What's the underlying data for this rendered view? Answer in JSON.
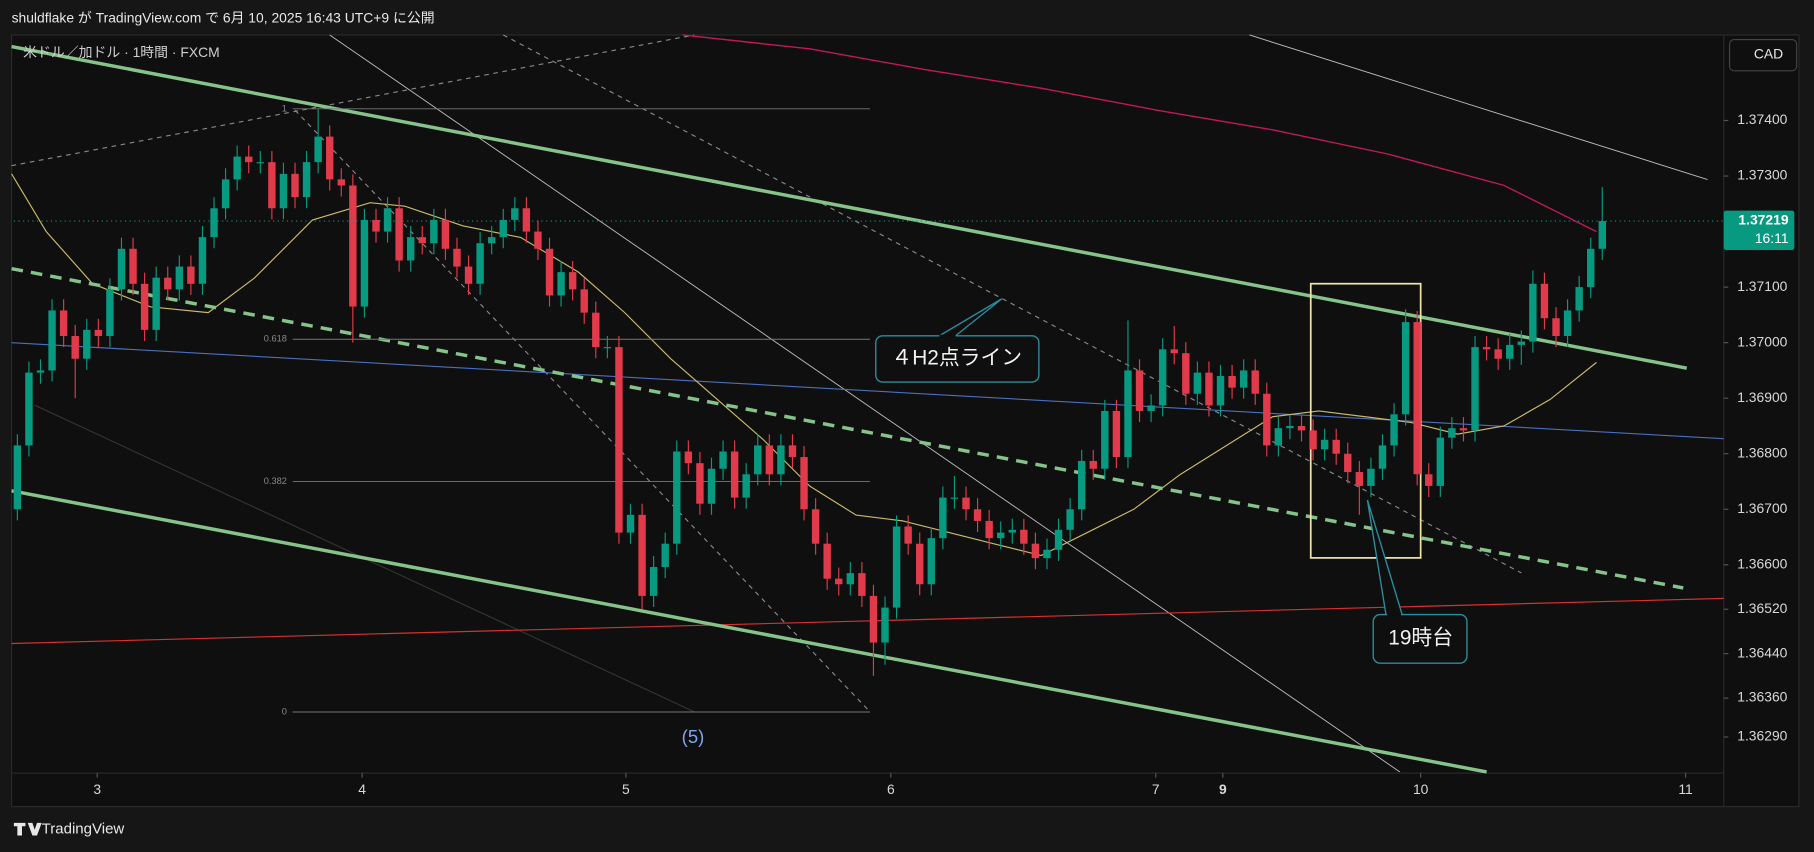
{
  "header": "shuldflake が TradingView.com で 6月 10, 2025 16:43 UTC+9 に公開",
  "branding": "TradingView",
  "chart_data": {
    "type": "candlestick",
    "title": "米ドル／加ドル · 1時間 · FXCM",
    "currency": "CAD",
    "up_color": "#089981",
    "down_color": "#e13a4b",
    "open": [
      1.367,
      1.36815,
      1.36946,
      1.3695,
      1.37058,
      1.37012,
      1.36971,
      1.37023,
      1.37012,
      1.37096,
      1.37169,
      1.37106,
      1.37023,
      1.37117,
      1.37096,
      1.37137,
      1.37106,
      1.3719,
      1.37242,
      1.37294,
      1.37335,
      1.37325,
      1.37325,
      1.37242,
      1.37304,
      1.37262,
      1.37325,
      1.37371,
      1.37294,
      1.37283,
      1.37065,
      1.37221,
      1.372,
      1.37242,
      1.37148,
      1.3719,
      1.37179,
      1.37221,
      1.37169,
      1.37137,
      1.37106,
      1.37179,
      1.3719,
      1.37221,
      1.37242,
      1.372,
      1.37169,
      1.37085,
      1.37127,
      1.37096,
      1.37054,
      1.36992,
      1.36992,
      1.36658,
      1.3669,
      1.36544,
      1.36596,
      1.36638,
      1.36804,
      1.36783,
      1.3671,
      1.36773,
      1.36804,
      1.36721,
      1.36763,
      1.36815,
      1.36763,
      1.36815,
      1.36794,
      1.367,
      1.36638,
      1.36575,
      1.36565,
      1.36585,
      1.36544,
      1.3646,
      1.36523,
      1.36669,
      1.36638,
      1.36565,
      1.36648,
      1.36721,
      1.36721,
      1.367,
      1.36679,
      1.36648,
      1.36658,
      1.36663,
      1.36638,
      1.36612,
      1.36627,
      1.36663,
      1.367,
      1.36787,
      1.36773,
      1.36877,
      1.36794,
      1.3695,
      1.36877,
      1.36887,
      1.36988,
      1.36981,
      1.36908,
      1.36946,
      1.36887,
      1.3694,
      1.36919,
      1.3695,
      1.36908,
      1.36815,
      1.36846,
      1.3685,
      1.36842,
      1.36808,
      1.36825,
      1.368,
      1.36767,
      1.36742,
      1.36773,
      1.36815,
      1.36871,
      1.37037,
      1.36763,
      1.36742,
      1.36829,
      1.36846,
      1.36842,
      1.36992,
      1.36988,
      1.36971,
      1.36996,
      1.37002,
      1.37106,
      1.37044,
      1.37012,
      1.37058,
      1.371,
      1.37169
    ],
    "high": [
      1.36835,
      1.36966,
      1.3697,
      1.37078,
      1.37078,
      1.37032,
      1.37043,
      1.37043,
      1.37116,
      1.37189,
      1.37189,
      1.37126,
      1.37137,
      1.37137,
      1.37157,
      1.37157,
      1.3721,
      1.37262,
      1.37314,
      1.37355,
      1.37355,
      1.37345,
      1.37345,
      1.37324,
      1.37324,
      1.37345,
      1.3742,
      1.37391,
      1.37314,
      1.37303,
      1.37241,
      1.37241,
      1.37262,
      1.37262,
      1.3721,
      1.3721,
      1.37241,
      1.37241,
      1.37189,
      1.37157,
      1.37199,
      1.3721,
      1.37241,
      1.37262,
      1.37262,
      1.3722,
      1.37189,
      1.37147,
      1.37147,
      1.37116,
      1.37074,
      1.37012,
      1.37012,
      1.3671,
      1.3671,
      1.36616,
      1.36658,
      1.36824,
      1.36824,
      1.36803,
      1.36793,
      1.36824,
      1.36824,
      1.36783,
      1.36835,
      1.36835,
      1.36835,
      1.36835,
      1.36814,
      1.3672,
      1.36658,
      1.36595,
      1.36605,
      1.36605,
      1.36564,
      1.36543,
      1.36689,
      1.36689,
      1.36658,
      1.36668,
      1.36741,
      1.3676,
      1.36741,
      1.3672,
      1.36699,
      1.36678,
      1.36683,
      1.36683,
      1.36658,
      1.36647,
      1.36683,
      1.3672,
      1.36807,
      1.36807,
      1.36897,
      1.36897,
      1.3704,
      1.3697,
      1.36907,
      1.37008,
      1.3703,
      1.37001,
      1.36966,
      1.36966,
      1.3696,
      1.3696,
      1.3697,
      1.3697,
      1.36928,
      1.36866,
      1.3687,
      1.3687,
      1.36862,
      1.36845,
      1.36845,
      1.3682,
      1.36787,
      1.36793,
      1.36835,
      1.36891,
      1.3706,
      1.37057,
      1.36783,
      1.36849,
      1.36866,
      1.36866,
      1.37012,
      1.37012,
      1.37008,
      1.37016,
      1.37022,
      1.3713,
      1.37126,
      1.37064,
      1.37078,
      1.3712,
      1.37189,
      1.3728
    ],
    "low": [
      1.3668,
      1.36795,
      1.36926,
      1.3693,
      1.36992,
      1.369,
      1.36951,
      1.36992,
      1.36992,
      1.37076,
      1.37086,
      1.37003,
      1.37003,
      1.37076,
      1.37076,
      1.37086,
      1.37086,
      1.3717,
      1.37222,
      1.37274,
      1.37305,
      1.37305,
      1.37222,
      1.37222,
      1.37242,
      1.37242,
      1.37305,
      1.37274,
      1.37263,
      1.37,
      1.37045,
      1.3718,
      1.3718,
      1.37128,
      1.37128,
      1.37159,
      1.37159,
      1.37149,
      1.37117,
      1.37086,
      1.37086,
      1.37159,
      1.3717,
      1.37201,
      1.3718,
      1.37149,
      1.37065,
      1.37065,
      1.37076,
      1.37034,
      1.36972,
      1.36972,
      1.36638,
      1.36638,
      1.3652,
      1.36524,
      1.36576,
      1.36618,
      1.36763,
      1.3669,
      1.3669,
      1.36753,
      1.36701,
      1.36701,
      1.36743,
      1.36743,
      1.36743,
      1.36774,
      1.3668,
      1.36618,
      1.36555,
      1.36545,
      1.36545,
      1.36524,
      1.364,
      1.3642,
      1.36503,
      1.36618,
      1.36545,
      1.36545,
      1.36628,
      1.36701,
      1.3668,
      1.36659,
      1.36628,
      1.36628,
      1.36638,
      1.36618,
      1.36592,
      1.36592,
      1.36607,
      1.36643,
      1.3668,
      1.36753,
      1.36753,
      1.36774,
      1.36774,
      1.36857,
      1.36857,
      1.36867,
      1.36961,
      1.36888,
      1.36888,
      1.36867,
      1.36867,
      1.36899,
      1.36899,
      1.36888,
      1.36795,
      1.36795,
      1.36826,
      1.36822,
      1.36788,
      1.36788,
      1.3678,
      1.36747,
      1.3669,
      1.36722,
      1.36753,
      1.36795,
      1.36851,
      1.36743,
      1.36722,
      1.36722,
      1.36809,
      1.36822,
      1.36822,
      1.36968,
      1.36951,
      1.36951,
      1.3696,
      1.36982,
      1.37024,
      1.36992,
      1.36992,
      1.37038,
      1.3708,
      1.37149
    ],
    "close": [
      1.36815,
      1.36946,
      1.3695,
      1.37058,
      1.37012,
      1.36971,
      1.37023,
      1.37012,
      1.37096,
      1.37169,
      1.37106,
      1.37023,
      1.37117,
      1.37096,
      1.37137,
      1.37106,
      1.3719,
      1.37242,
      1.37294,
      1.37335,
      1.37325,
      1.37325,
      1.37242,
      1.37304,
      1.37262,
      1.37325,
      1.37371,
      1.37294,
      1.37283,
      1.37065,
      1.37221,
      1.372,
      1.37242,
      1.37148,
      1.3719,
      1.37179,
      1.37221,
      1.37169,
      1.37137,
      1.37106,
      1.37179,
      1.3719,
      1.37221,
      1.37242,
      1.372,
      1.37169,
      1.37085,
      1.37127,
      1.37096,
      1.37054,
      1.36992,
      1.36992,
      1.36658,
      1.3669,
      1.36544,
      1.36596,
      1.36638,
      1.36804,
      1.36783,
      1.3671,
      1.36773,
      1.36804,
      1.36721,
      1.36763,
      1.36815,
      1.36763,
      1.36815,
      1.36794,
      1.367,
      1.36638,
      1.36575,
      1.36565,
      1.36585,
      1.36544,
      1.3646,
      1.36523,
      1.36669,
      1.36638,
      1.36565,
      1.36648,
      1.36721,
      1.36721,
      1.367,
      1.36679,
      1.36648,
      1.36658,
      1.36663,
      1.36638,
      1.36612,
      1.36627,
      1.36663,
      1.367,
      1.36787,
      1.36773,
      1.36877,
      1.36794,
      1.3695,
      1.36877,
      1.36887,
      1.36988,
      1.36981,
      1.36908,
      1.36946,
      1.36887,
      1.3694,
      1.36919,
      1.3695,
      1.36908,
      1.36815,
      1.36846,
      1.3685,
      1.36842,
      1.36808,
      1.36825,
      1.368,
      1.36767,
      1.36742,
      1.36773,
      1.36815,
      1.36871,
      1.37037,
      1.36763,
      1.36742,
      1.36829,
      1.36846,
      1.36842,
      1.36992,
      1.36988,
      1.36971,
      1.36996,
      1.37002,
      1.37106,
      1.37044,
      1.37012,
      1.37058,
      1.371,
      1.37169,
      1.37219
    ],
    "xlim": [
      -0.3,
      147.5
    ],
    "xticks": [
      {
        "value": 6.9,
        "label": "3"
      },
      {
        "value": 29.8,
        "label": "4"
      },
      {
        "value": 52.6,
        "label": "5"
      },
      {
        "value": 75.5,
        "label": "6"
      },
      {
        "value": 98.4,
        "label": "7"
      },
      {
        "value": 104.2,
        "label": "9"
      },
      {
        "value": 121.3,
        "label": "10"
      },
      {
        "value": 144.2,
        "label": "11"
      }
    ],
    "ylim": [
      1.36225,
      1.37554
    ],
    "yticks": [
      {
        "value": 1.374,
        "label": "1.37400"
      },
      {
        "value": 1.373,
        "label": "1.37300"
      },
      {
        "value": 1.371,
        "label": "1.37100"
      },
      {
        "value": 1.37,
        "label": "1.37000"
      },
      {
        "value": 1.369,
        "label": "1.36900"
      },
      {
        "value": 1.368,
        "label": "1.36800"
      },
      {
        "value": 1.367,
        "label": "1.36700"
      },
      {
        "value": 1.366,
        "label": "1.36600"
      },
      {
        "value": 1.3652,
        "label": "1.36520"
      },
      {
        "value": 1.3644,
        "label": "1.36440"
      },
      {
        "value": 1.3636,
        "label": "1.36360"
      },
      {
        "value": 1.3629,
        "label": "1.36290"
      }
    ],
    "grid": false,
    "last_price": 1.37219,
    "countdown": "16:11",
    "fib": {
      "levels": [
        1,
        0.618,
        0.382,
        0
      ],
      "high": 1.37421,
      "low": 1.36335
    },
    "annotations": [
      "４H2点ライン",
      "19時台",
      "(5)"
    ]
  }
}
